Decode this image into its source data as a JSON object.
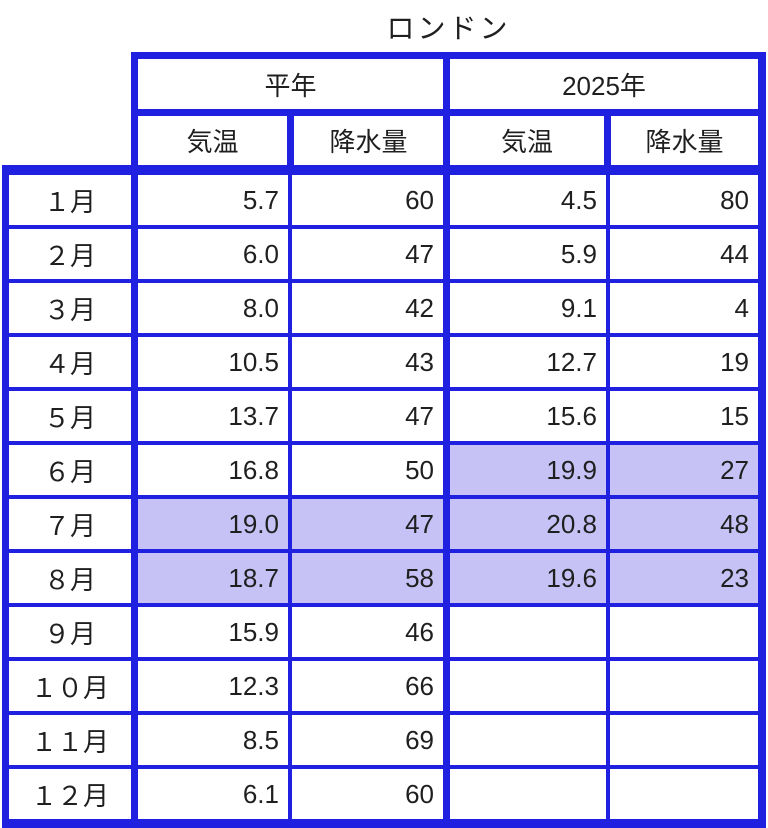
{
  "title": "ロンドン",
  "colors": {
    "border_blue": "#2020e0",
    "highlight_purple": "#c6c2f5",
    "text": "#1f1f1f"
  },
  "table": {
    "col_groups": [
      {
        "label": "平年"
      },
      {
        "label": "2025年"
      }
    ],
    "sub_headers": [
      "気温",
      "降水量",
      "気温",
      "降水量"
    ],
    "rows": [
      {
        "month": "１月",
        "values": [
          "5.7",
          "60",
          "4.5",
          "80"
        ],
        "highlights": [
          false,
          false,
          false,
          false
        ]
      },
      {
        "month": "２月",
        "values": [
          "6.0",
          "47",
          "5.9",
          "44"
        ],
        "highlights": [
          false,
          false,
          false,
          false
        ]
      },
      {
        "month": "３月",
        "values": [
          "8.0",
          "42",
          "9.1",
          "4"
        ],
        "highlights": [
          false,
          false,
          false,
          false
        ]
      },
      {
        "month": "４月",
        "values": [
          "10.5",
          "43",
          "12.7",
          "19"
        ],
        "highlights": [
          false,
          false,
          false,
          false
        ]
      },
      {
        "month": "５月",
        "values": [
          "13.7",
          "47",
          "15.6",
          "15"
        ],
        "highlights": [
          false,
          false,
          false,
          false
        ]
      },
      {
        "month": "６月",
        "values": [
          "16.8",
          "50",
          "19.9",
          "27"
        ],
        "highlights": [
          false,
          false,
          true,
          true
        ]
      },
      {
        "month": "７月",
        "values": [
          "19.0",
          "47",
          "20.8",
          "48"
        ],
        "highlights": [
          true,
          true,
          true,
          true
        ]
      },
      {
        "month": "８月",
        "values": [
          "18.7",
          "58",
          "19.6",
          "23"
        ],
        "highlights": [
          true,
          true,
          true,
          true
        ]
      },
      {
        "month": "９月",
        "values": [
          "15.9",
          "46",
          "",
          ""
        ],
        "highlights": [
          false,
          false,
          false,
          false
        ]
      },
      {
        "month": "１０月",
        "values": [
          "12.3",
          "66",
          "",
          ""
        ],
        "highlights": [
          false,
          false,
          false,
          false
        ]
      },
      {
        "month": "１１月",
        "values": [
          "8.5",
          "69",
          "",
          ""
        ],
        "highlights": [
          false,
          false,
          false,
          false
        ]
      },
      {
        "month": "１２月",
        "values": [
          "6.1",
          "60",
          "",
          ""
        ],
        "highlights": [
          false,
          false,
          false,
          false
        ]
      }
    ]
  },
  "chart_data": {
    "type": "table",
    "title": "ロンドン",
    "column_groups": [
      "平年",
      "2025年"
    ],
    "columns": [
      "月",
      "平年 気温",
      "平年 降水量",
      "2025年 気温",
      "2025年 降水量"
    ],
    "rows": [
      [
        "1月",
        5.7,
        60,
        4.5,
        80
      ],
      [
        "2月",
        6.0,
        47,
        5.9,
        44
      ],
      [
        "3月",
        8.0,
        42,
        9.1,
        4
      ],
      [
        "4月",
        10.5,
        43,
        12.7,
        19
      ],
      [
        "5月",
        13.7,
        47,
        15.6,
        15
      ],
      [
        "6月",
        16.8,
        50,
        19.9,
        27
      ],
      [
        "7月",
        19.0,
        47,
        20.8,
        48
      ],
      [
        "8月",
        18.7,
        58,
        19.6,
        23
      ],
      [
        "9月",
        15.9,
        46,
        null,
        null
      ],
      [
        "10月",
        12.3,
        66,
        null,
        null
      ],
      [
        "11月",
        8.5,
        69,
        null,
        null
      ],
      [
        "12月",
        6.1,
        60,
        null,
        null
      ]
    ],
    "highlighted_cells": [
      {
        "row": "6月",
        "columns": [
          "2025年 気温",
          "2025年 降水量"
        ]
      },
      {
        "row": "7月",
        "columns": [
          "平年 気温",
          "平年 降水量",
          "2025年 気温",
          "2025年 降水量"
        ]
      },
      {
        "row": "8月",
        "columns": [
          "平年 気温",
          "平年 降水量",
          "2025年 気温",
          "2025年 降水量"
        ]
      }
    ],
    "highlight_meaning_hint": "light purple fill on cells",
    "layout": {
      "grid_color": "#2020e0",
      "thick_borders": "outer edges and group separators"
    }
  }
}
